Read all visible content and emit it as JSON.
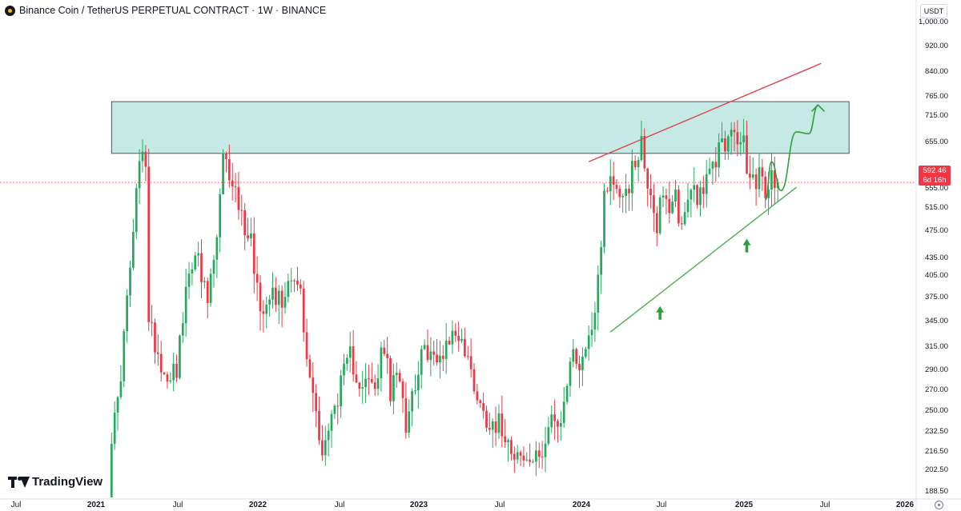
{
  "header": {
    "title": "Binance Coin / TetherUS PERPETUAL CONTRACT · 1W · BINANCE"
  },
  "price_axis": {
    "unit": "USDT",
    "labels": [
      "1,000.00",
      "920.00",
      "840.00",
      "765.00",
      "715.00",
      "655.00",
      "555.00",
      "515.00",
      "475.00",
      "435.00",
      "405.00",
      "375.00",
      "345.00",
      "315.00",
      "290.00",
      "270.00",
      "250.00",
      "232.50",
      "216.50",
      "202.50",
      "188.50"
    ]
  },
  "current_price": {
    "value": "592.46",
    "countdown": "6d 16h",
    "color": "#f23645"
  },
  "time_axis": {
    "labels": [
      {
        "text": "Jul",
        "bold": false
      },
      {
        "text": "2021",
        "bold": true
      },
      {
        "text": "Jul",
        "bold": false
      },
      {
        "text": "2022",
        "bold": true
      },
      {
        "text": "Jul",
        "bold": false
      },
      {
        "text": "2023",
        "bold": true
      },
      {
        "text": "Jul",
        "bold": false
      },
      {
        "text": "2024",
        "bold": true
      },
      {
        "text": "Jul",
        "bold": false
      },
      {
        "text": "2025",
        "bold": true
      },
      {
        "text": "Jul",
        "bold": false
      },
      {
        "text": "2026",
        "bold": true
      }
    ]
  },
  "branding": {
    "name": "TradingView",
    "icon": "tradingview-logo-icon"
  },
  "icons": {
    "settings": "gear-icon",
    "symbol": "binance-coin-icon"
  },
  "colors": {
    "up": "#22ab5c",
    "down": "#f23645",
    "zone": "#9fdcd3",
    "trend_up": "#4caf50",
    "trend_down": "#e0434f"
  },
  "chart_data": {
    "type": "candlestick",
    "title": "Binance Coin / TetherUS PERPETUAL CONTRACT · 1W · BINANCE",
    "interval": "1W",
    "y_scale": "log",
    "ylim": [
      184,
      1080
    ],
    "x_range": [
      "2020-06-15",
      "2026-02-10"
    ],
    "price_line": 592.46,
    "resistance_zone": {
      "low": 660,
      "high": 800,
      "start": "2021-02-22",
      "end": "2025-09-15"
    },
    "trendlines": [
      {
        "name": "support",
        "color": "#4caf50",
        "points": [
          [
            "2024-03-25",
            340
          ],
          [
            "2025-05-19",
            582
          ]
        ]
      },
      {
        "name": "resistance",
        "color": "#e0434f",
        "points": [
          [
            "2024-02-05",
            640
          ],
          [
            "2025-07-14",
            922
          ]
        ]
      }
    ],
    "projection_path": [
      [
        "2025-03-10",
        555
      ],
      [
        "2025-03-24",
        640
      ],
      [
        "2025-04-14",
        575
      ],
      [
        "2025-05-19",
        715
      ],
      [
        "2025-06-16",
        710
      ],
      [
        "2025-07-07",
        790
      ]
    ],
    "arrows": [
      {
        "x": "2024-07-15",
        "y": 370,
        "direction": "up"
      },
      {
        "x": "2025-01-27",
        "y": 475,
        "direction": "up"
      }
    ],
    "ohlc_anchors": [
      [
        "2021-02-15",
        40
      ],
      [
        "2021-02-22",
        230
      ],
      [
        "2021-03-08",
        260
      ],
      [
        "2021-04-05",
        430
      ],
      [
        "2021-04-26",
        640
      ],
      [
        "2021-05-10",
        650
      ],
      [
        "2021-05-17",
        350
      ],
      [
        "2021-05-31",
        330
      ],
      [
        "2021-06-21",
        290
      ],
      [
        "2021-07-19",
        300
      ],
      [
        "2021-08-16",
        420
      ],
      [
        "2021-08-30",
        470
      ],
      [
        "2021-09-13",
        410
      ],
      [
        "2021-09-27",
        380
      ],
      [
        "2021-10-18",
        480
      ],
      [
        "2021-11-01",
        640
      ],
      [
        "2021-11-22",
        600
      ],
      [
        "2021-12-13",
        520
      ],
      [
        "2022-01-03",
        480
      ],
      [
        "2022-01-24",
        370
      ],
      [
        "2022-02-14",
        400
      ],
      [
        "2022-03-14",
        380
      ],
      [
        "2022-04-04",
        430
      ],
      [
        "2022-04-25",
        390
      ],
      [
        "2022-05-09",
        300
      ],
      [
        "2022-05-16",
        290
      ],
      [
        "2022-06-13",
        220
      ],
      [
        "2022-06-27",
        235
      ],
      [
        "2022-07-18",
        270
      ],
      [
        "2022-08-15",
        310
      ],
      [
        "2022-09-05",
        285
      ],
      [
        "2022-10-10",
        275
      ],
      [
        "2022-10-31",
        325
      ],
      [
        "2022-11-14",
        270
      ],
      [
        "2022-12-05",
        295
      ],
      [
        "2022-12-19",
        245
      ],
      [
        "2023-01-16",
        300
      ],
      [
        "2023-02-06",
        320
      ],
      [
        "2023-02-27",
        300
      ],
      [
        "2023-03-20",
        330
      ],
      [
        "2023-04-17",
        340
      ],
      [
        "2023-05-08",
        305
      ],
      [
        "2023-06-12",
        250
      ],
      [
        "2023-07-03",
        245
      ],
      [
        "2023-07-24",
        240
      ],
      [
        "2023-08-21",
        220
      ],
      [
        "2023-09-11",
        210
      ],
      [
        "2023-10-09",
        210
      ],
      [
        "2023-10-30",
        230
      ],
      [
        "2023-11-13",
        250
      ],
      [
        "2023-11-27",
        230
      ],
      [
        "2023-12-11",
        260
      ],
      [
        "2023-12-25",
        310
      ],
      [
        "2024-01-15",
        305
      ],
      [
        "2024-02-05",
        330
      ],
      [
        "2024-02-19",
        380
      ],
      [
        "2024-03-04",
        460
      ],
      [
        "2024-03-11",
        590
      ],
      [
        "2024-03-25",
        600
      ],
      [
        "2024-04-15",
        570
      ],
      [
        "2024-05-06",
        590
      ],
      [
        "2024-06-03",
        700
      ],
      [
        "2024-06-10",
        610
      ],
      [
        "2024-06-24",
        580
      ],
      [
        "2024-07-08",
        500
      ],
      [
        "2024-07-15",
        570
      ],
      [
        "2024-08-05",
        520
      ],
      [
        "2024-08-19",
        560
      ],
      [
        "2024-09-02",
        500
      ],
      [
        "2024-09-23",
        590
      ],
      [
        "2024-10-07",
        570
      ],
      [
        "2024-10-28",
        590
      ],
      [
        "2024-11-11",
        620
      ],
      [
        "2024-12-02",
        700
      ],
      [
        "2024-12-16",
        690
      ],
      [
        "2025-01-06",
        700
      ],
      [
        "2025-01-20",
        680
      ],
      [
        "2025-02-03",
        590
      ],
      [
        "2025-02-24",
        610
      ],
      [
        "2025-03-10",
        560
      ],
      [
        "2025-03-24",
        605
      ],
      [
        "2025-04-07",
        592.46
      ]
    ]
  }
}
